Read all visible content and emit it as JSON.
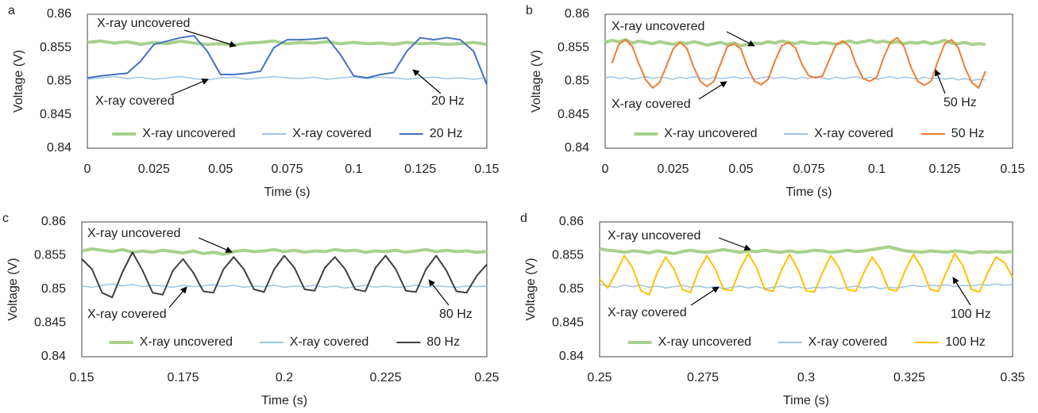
{
  "chart_data": [
    {
      "type": "line",
      "label": "a",
      "xlabel": "Time (s)",
      "ylabel": "Voltage (V)",
      "x": [
        0,
        0.005,
        0.01,
        0.015,
        0.02,
        0.025,
        0.03,
        0.035,
        0.04,
        0.045,
        0.05,
        0.055,
        0.06,
        0.065,
        0.07,
        0.075,
        0.08,
        0.085,
        0.09,
        0.095,
        0.1,
        0.105,
        0.11,
        0.115,
        0.12,
        0.125,
        0.13,
        0.135,
        0.14,
        0.145,
        0.15
      ],
      "series": [
        {
          "name": "X-ray uncovered",
          "color": "#a9d18e",
          "values": [
            0.8558,
            0.856,
            0.8557,
            0.8559,
            0.8555,
            0.8558,
            0.8556,
            0.856,
            0.8557,
            0.8555,
            0.8556,
            0.8554,
            0.8557,
            0.8558,
            0.856,
            0.8556,
            0.8558,
            0.8557,
            0.8559,
            0.8556,
            0.8558,
            0.8556,
            0.8557,
            0.8555,
            0.8558,
            0.8556,
            0.8557,
            0.8555,
            0.8556,
            0.8558,
            0.8555
          ]
        },
        {
          "name": "X-ray covered",
          "color": "#9dc3e6",
          "values": [
            0.8503,
            0.8505,
            0.8507,
            0.8504,
            0.8506,
            0.8503,
            0.8505,
            0.8507,
            0.8504,
            0.8502,
            0.8505,
            0.8506,
            0.8503,
            0.8505,
            0.8507,
            0.8505,
            0.8504,
            0.8506,
            0.8503,
            0.8505,
            0.8507,
            0.8504,
            0.8506,
            0.8505,
            0.8503,
            0.8505,
            0.8506,
            0.8504,
            0.8505,
            0.8503,
            0.8505
          ]
        },
        {
          "name": "20 Hz",
          "color": "#4472c4",
          "values": [
            0.8505,
            0.8508,
            0.851,
            0.8512,
            0.853,
            0.8555,
            0.856,
            0.8565,
            0.8568,
            0.8545,
            0.851,
            0.851,
            0.8512,
            0.8515,
            0.855,
            0.8562,
            0.8562,
            0.8563,
            0.8565,
            0.854,
            0.8508,
            0.8505,
            0.851,
            0.8513,
            0.8545,
            0.8565,
            0.8562,
            0.8565,
            0.8562,
            0.8545,
            0.8495
          ]
        }
      ],
      "annotations": [
        "X-ray uncovered",
        "X-ray covered",
        "20 Hz"
      ],
      "xlim": [
        0,
        0.15
      ],
      "xticks": [
        0,
        0.025,
        0.05,
        0.075,
        0.1,
        0.125,
        0.15
      ],
      "ylim": [
        0.84,
        0.86
      ],
      "yticks": [
        0.84,
        0.845,
        0.85,
        0.855,
        0.86
      ],
      "grid": false
    },
    {
      "type": "line",
      "label": "b",
      "xlabel": "Time (s)",
      "ylabel": "Voltage (V)",
      "x": [
        0,
        0.0025,
        0.005,
        0.0075,
        0.01,
        0.0125,
        0.015,
        0.0175,
        0.02,
        0.0225,
        0.025,
        0.0275,
        0.03,
        0.0325,
        0.035,
        0.0375,
        0.04,
        0.0425,
        0.045,
        0.0475,
        0.05,
        0.0525,
        0.055,
        0.0575,
        0.06,
        0.0625,
        0.065,
        0.0675,
        0.07,
        0.0725,
        0.075,
        0.0775,
        0.08,
        0.0825,
        0.085,
        0.0875,
        0.09,
        0.0925,
        0.095,
        0.0975,
        0.1,
        0.1025,
        0.105,
        0.1075,
        0.11,
        0.1125,
        0.115,
        0.1175,
        0.12,
        0.1225,
        0.125,
        0.1275,
        0.13,
        0.1325,
        0.135,
        0.1375,
        0.14
      ],
      "series": [
        {
          "name": "X-ray uncovered",
          "color": "#a9d18e",
          "values": [
            0.8558,
            0.8561,
            0.8559,
            0.8562,
            0.8557,
            0.856,
            0.8558,
            0.8556,
            0.8559,
            0.8557,
            0.8555,
            0.8558,
            0.8556,
            0.8559,
            0.8557,
            0.8554,
            0.8556,
            0.8558,
            0.8555,
            0.8557,
            0.8553,
            0.8555,
            0.8557,
            0.8556,
            0.8559,
            0.8557,
            0.856,
            0.8558,
            0.8556,
            0.8559,
            0.8557,
            0.8556,
            0.8558,
            0.8557,
            0.8555,
            0.8558,
            0.856,
            0.8557,
            0.8559,
            0.8561,
            0.8558,
            0.856,
            0.8557,
            0.8559,
            0.8556,
            0.8558,
            0.8557,
            0.8559,
            0.8556,
            0.8558,
            0.8561,
            0.8557,
            0.8556,
            0.8558,
            0.8555,
            0.8556,
            0.8555
          ]
        },
        {
          "name": "X-ray covered",
          "color": "#9dc3e6",
          "values": [
            0.8505,
            0.8507,
            0.8504,
            0.8506,
            0.8503,
            0.8505,
            0.8507,
            0.8504,
            0.8506,
            0.8505,
            0.8503,
            0.8506,
            0.8504,
            0.8507,
            0.8505,
            0.8503,
            0.8506,
            0.8504,
            0.8505,
            0.8507,
            0.8504,
            0.8506,
            0.8503,
            0.8505,
            0.8507,
            0.8504,
            0.8506,
            0.8505,
            0.8503,
            0.8506,
            0.8504,
            0.8507,
            0.8505,
            0.8503,
            0.8506,
            0.8504,
            0.8505,
            0.8507,
            0.8504,
            0.8506,
            0.8503,
            0.8505,
            0.8507,
            0.8504,
            0.8506,
            0.8505,
            0.8503,
            0.8506,
            0.8504,
            0.8505,
            0.8503,
            0.8505,
            0.8502,
            0.8504,
            0.8501,
            0.8503,
            0.8502
          ]
        },
        {
          "name": "50 Hz",
          "color": "#ed7d31",
          "values": [
            null,
            0.8527,
            0.8555,
            0.8562,
            0.8552,
            0.8525,
            0.8502,
            0.849,
            0.8498,
            0.8522,
            0.8548,
            0.8558,
            0.855,
            0.8522,
            0.85,
            0.8492,
            0.85,
            0.8526,
            0.8552,
            0.8556,
            0.8548,
            0.852,
            0.85,
            0.8495,
            0.8503,
            0.853,
            0.8553,
            0.8558,
            0.855,
            0.8525,
            0.8508,
            0.8505,
            0.8508,
            0.8532,
            0.8555,
            0.856,
            0.8552,
            0.8524,
            0.8504,
            0.85,
            0.8506,
            0.8535,
            0.8558,
            0.8565,
            0.8552,
            0.8522,
            0.85,
            0.8494,
            0.85,
            0.853,
            0.8556,
            0.8562,
            0.855,
            0.852,
            0.8498,
            0.849,
            0.8515
          ]
        }
      ],
      "annotations": [
        "X-ray uncovered",
        "X-ray covered",
        "50 Hz"
      ],
      "xlim": [
        0,
        0.15
      ],
      "xticks": [
        0,
        0.025,
        0.05,
        0.075,
        0.1,
        0.125,
        0.15
      ],
      "ylim": [
        0.84,
        0.86
      ],
      "yticks": [
        0.84,
        0.845,
        0.85,
        0.855,
        0.86
      ],
      "grid": false
    },
    {
      "type": "line",
      "label": "c",
      "xlabel": "Time (s)",
      "ylabel": "Voltage (V)",
      "x": [
        0.15,
        0.1525,
        0.155,
        0.1575,
        0.16,
        0.1625,
        0.165,
        0.1675,
        0.17,
        0.1725,
        0.175,
        0.1775,
        0.18,
        0.1825,
        0.185,
        0.1875,
        0.19,
        0.1925,
        0.195,
        0.1975,
        0.2,
        0.2025,
        0.205,
        0.2075,
        0.21,
        0.2125,
        0.215,
        0.2175,
        0.22,
        0.2225,
        0.225,
        0.2275,
        0.23,
        0.2325,
        0.235,
        0.2375,
        0.24,
        0.2425,
        0.245,
        0.2475,
        0.25
      ],
      "series": [
        {
          "name": "X-ray uncovered",
          "color": "#a9d18e",
          "values": [
            0.8557,
            0.856,
            0.8558,
            0.8556,
            0.8559,
            0.8555,
            0.8557,
            0.8555,
            0.8558,
            0.8556,
            0.8554,
            0.8557,
            0.8553,
            0.8555,
            0.8552,
            0.8556,
            0.8558,
            0.8556,
            0.8557,
            0.8559,
            0.8556,
            0.8558,
            0.8555,
            0.8557,
            0.8556,
            0.8559,
            0.8557,
            0.8558,
            0.8555,
            0.8557,
            0.8556,
            0.8558,
            0.8555,
            0.8557,
            0.8559,
            0.8556,
            0.8558,
            0.8556,
            0.8557,
            0.8555,
            0.8556
          ]
        },
        {
          "name": "X-ray covered",
          "color": "#9dc3e6",
          "values": [
            0.8505,
            0.8503,
            0.8506,
            0.8508,
            0.8505,
            0.8507,
            0.8504,
            0.8506,
            0.8505,
            0.8503,
            0.8506,
            0.8504,
            0.8505,
            0.8507,
            0.8504,
            0.8506,
            0.8503,
            0.8505,
            0.8504,
            0.8506,
            0.8503,
            0.8505,
            0.8504,
            0.8506,
            0.8503,
            0.8505,
            0.8502,
            0.8504,
            0.8506,
            0.8503,
            0.8505,
            0.8503,
            0.8504,
            0.8506,
            0.8503,
            0.8505,
            0.8504,
            0.8503,
            0.8505,
            0.8504,
            0.8505
          ]
        },
        {
          "name": "80 Hz",
          "color": "#404040",
          "values": [
            0.8545,
            0.853,
            0.8495,
            0.8488,
            0.8525,
            0.8555,
            0.8528,
            0.8495,
            0.8492,
            0.8528,
            0.8545,
            0.8525,
            0.8497,
            0.8495,
            0.853,
            0.8548,
            0.853,
            0.85,
            0.8496,
            0.853,
            0.855,
            0.8532,
            0.85,
            0.8498,
            0.8532,
            0.8548,
            0.853,
            0.85,
            0.8497,
            0.8532,
            0.855,
            0.853,
            0.8498,
            0.8496,
            0.853,
            0.855,
            0.8528,
            0.8497,
            0.8495,
            0.852,
            0.8537
          ]
        }
      ],
      "annotations": [
        "X-ray uncovered",
        "X-ray covered",
        "80 Hz"
      ],
      "xlim": [
        0.15,
        0.25
      ],
      "xticks": [
        0.15,
        0.175,
        0.2,
        0.225,
        0.25
      ],
      "ylim": [
        0.84,
        0.86
      ],
      "yticks": [
        0.84,
        0.845,
        0.85,
        0.855,
        0.86
      ],
      "grid": false
    },
    {
      "type": "line",
      "label": "d",
      "xlabel": "Time (s)",
      "ylabel": "Voltage (V)",
      "x": [
        0.25,
        0.252,
        0.254,
        0.256,
        0.258,
        0.26,
        0.262,
        0.264,
        0.266,
        0.268,
        0.27,
        0.272,
        0.274,
        0.276,
        0.278,
        0.28,
        0.282,
        0.284,
        0.286,
        0.288,
        0.29,
        0.292,
        0.294,
        0.296,
        0.298,
        0.3,
        0.302,
        0.304,
        0.306,
        0.308,
        0.31,
        0.312,
        0.314,
        0.316,
        0.318,
        0.32,
        0.322,
        0.324,
        0.326,
        0.328,
        0.33,
        0.332,
        0.334,
        0.336,
        0.338,
        0.34,
        0.342,
        0.344,
        0.346,
        0.348,
        0.35
      ],
      "series": [
        {
          "name": "X-ray uncovered",
          "color": "#a9d18e",
          "values": [
            0.856,
            0.8558,
            0.8557,
            0.8555,
            0.8557,
            0.8556,
            0.8554,
            0.8557,
            0.8555,
            0.8553,
            0.8556,
            0.8558,
            0.8556,
            0.8555,
            0.8557,
            0.8559,
            0.8557,
            0.8555,
            0.8557,
            0.8556,
            0.8558,
            0.8556,
            0.8555,
            0.8557,
            0.8555,
            0.8556,
            0.8558,
            0.8557,
            0.8555,
            0.8556,
            0.8558,
            0.8556,
            0.8557,
            0.8559,
            0.8561,
            0.8563,
            0.856,
            0.8557,
            0.8556,
            0.8555,
            0.8557,
            0.8556,
            0.8555,
            0.8557,
            0.8556,
            0.8554,
            0.8556,
            0.8555,
            0.8556,
            0.8555,
            0.8556
          ]
        },
        {
          "name": "X-ray covered",
          "color": "#9dc3e6",
          "values": [
            0.8507,
            0.8505,
            0.8503,
            0.8506,
            0.8504,
            0.8506,
            0.8503,
            0.8505,
            0.8502,
            0.8504,
            0.8506,
            0.8503,
            0.8505,
            0.8502,
            0.8504,
            0.8501,
            0.8503,
            0.8505,
            0.8502,
            0.8504,
            0.8501,
            0.8503,
            0.8505,
            0.8502,
            0.8504,
            0.8501,
            0.8503,
            0.8502,
            0.8504,
            0.8501,
            0.8503,
            0.8505,
            0.8502,
            0.8504,
            0.8501,
            0.8503,
            0.8502,
            0.8504,
            0.8506,
            0.8504,
            0.8506,
            0.8505,
            0.8507,
            0.8504,
            0.8506,
            0.8505,
            0.8507,
            0.8506,
            0.8508,
            0.8506,
            0.8507
          ]
        },
        {
          "name": "100 Hz",
          "color": "#ffc000",
          "values": [
            0.8515,
            0.8502,
            0.8525,
            0.855,
            0.8532,
            0.8498,
            0.8492,
            0.8525,
            0.8548,
            0.853,
            0.85,
            0.8495,
            0.8528,
            0.855,
            0.853,
            0.85,
            0.8498,
            0.853,
            0.8553,
            0.8532,
            0.85,
            0.8497,
            0.8528,
            0.8552,
            0.853,
            0.8498,
            0.8496,
            0.8525,
            0.855,
            0.8532,
            0.85,
            0.8497,
            0.8525,
            0.8548,
            0.853,
            0.85,
            0.8498,
            0.8528,
            0.8552,
            0.8532,
            0.85,
            0.8497,
            0.8526,
            0.8553,
            0.8535,
            0.85,
            0.8496,
            0.8525,
            0.8548,
            0.854,
            0.8518
          ]
        }
      ],
      "annotations": [
        "X-ray uncovered",
        "X-ray covered",
        "100 Hz"
      ],
      "xlim": [
        0.25,
        0.35
      ],
      "xticks": [
        0.25,
        0.275,
        0.3,
        0.325,
        0.35
      ],
      "ylim": [
        0.84,
        0.86
      ],
      "yticks": [
        0.84,
        0.845,
        0.85,
        0.855,
        0.86
      ],
      "grid": false
    }
  ]
}
